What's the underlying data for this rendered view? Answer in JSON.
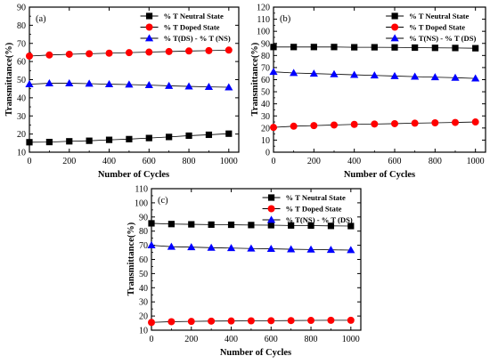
{
  "chart_data": [
    {
      "type": "scatter",
      "panel_label": "(a)",
      "xlabel": "Number of Cycles",
      "ylabel": "Transmittance(%)",
      "xlim": [
        0,
        1050
      ],
      "ylim": [
        10,
        90
      ],
      "xticks": [
        0,
        200,
        400,
        600,
        800,
        1000
      ],
      "yticks": [
        10,
        20,
        30,
        40,
        50,
        60,
        70,
        80,
        90
      ],
      "legend_position": "top-right",
      "series": [
        {
          "name": "% T Neutral State",
          "marker": "square",
          "color": "#000000",
          "x": [
            0,
            100,
            200,
            300,
            400,
            500,
            600,
            700,
            800,
            900,
            1000
          ],
          "y": [
            15.5,
            15.6,
            16,
            16.3,
            16.8,
            17.2,
            17.8,
            18.4,
            19.1,
            19.6,
            20.2
          ]
        },
        {
          "name": "% T Doped State",
          "marker": "circle",
          "color": "#ff0000",
          "x": [
            0,
            100,
            200,
            300,
            400,
            500,
            600,
            700,
            800,
            900,
            1000
          ],
          "y": [
            63,
            63.6,
            64,
            64.3,
            64.6,
            64.9,
            65.2,
            65.5,
            65.8,
            66,
            66.3
          ]
        },
        {
          "name": "% T(DS) - % T (NS)",
          "marker": "triangle",
          "color": "#0000ff",
          "x": [
            0,
            100,
            200,
            300,
            400,
            500,
            600,
            700,
            800,
            900,
            1000
          ],
          "y": [
            47.5,
            48,
            48,
            47.8,
            47.5,
            47.3,
            47,
            46.6,
            46.3,
            46,
            45.8
          ]
        }
      ]
    },
    {
      "type": "scatter",
      "panel_label": "(b)",
      "xlabel": "Number of Cycles",
      "ylabel": "Transmittance(%)",
      "xlim": [
        0,
        1050
      ],
      "ylim": [
        0,
        120
      ],
      "xticks": [
        0,
        200,
        400,
        600,
        800,
        1000
      ],
      "yticks": [
        0,
        10,
        20,
        30,
        40,
        50,
        60,
        70,
        80,
        90,
        100,
        110,
        120
      ],
      "legend_position": "top-right",
      "series": [
        {
          "name": "% T Neutral State",
          "marker": "square",
          "color": "#000000",
          "x": [
            0,
            100,
            200,
            300,
            400,
            500,
            600,
            700,
            800,
            900,
            1000
          ],
          "y": [
            87,
            87,
            87,
            87,
            86.8,
            86.8,
            86.7,
            86.5,
            86.3,
            86.2,
            86
          ]
        },
        {
          "name": "% T Doped State",
          "marker": "circle",
          "color": "#ff0000",
          "x": [
            0,
            100,
            200,
            300,
            400,
            500,
            600,
            700,
            800,
            900,
            1000
          ],
          "y": [
            20.5,
            21.5,
            22,
            22.5,
            23,
            23.3,
            23.6,
            24,
            24.3,
            24.6,
            25
          ]
        },
        {
          "name": "% T(NS) - % T (DS)",
          "marker": "triangle",
          "color": "#0000ff",
          "x": [
            0,
            100,
            200,
            300,
            400,
            500,
            600,
            700,
            800,
            900,
            1000
          ],
          "y": [
            66.5,
            65.5,
            65,
            64.5,
            64,
            63.5,
            63,
            62.5,
            62,
            61.6,
            61
          ]
        }
      ]
    },
    {
      "type": "scatter",
      "panel_label": "(c)",
      "xlabel": "Number of Cycles",
      "ylabel": "Transmittance(%)",
      "xlim": [
        0,
        1050
      ],
      "ylim": [
        10,
        110
      ],
      "xticks": [
        0,
        200,
        400,
        600,
        800,
        1000
      ],
      "yticks": [
        10,
        20,
        30,
        40,
        50,
        60,
        70,
        80,
        90,
        100,
        110
      ],
      "legend_position": "top-right",
      "series": [
        {
          "name": "% T Neutral State",
          "marker": "square",
          "color": "#000000",
          "x": [
            0,
            100,
            200,
            300,
            400,
            500,
            600,
            700,
            800,
            900,
            1000
          ],
          "y": [
            85.5,
            85,
            84.8,
            84.6,
            84.5,
            84.3,
            84.2,
            84,
            83.9,
            83.7,
            83.6
          ]
        },
        {
          "name": "% T Doped State",
          "marker": "circle",
          "color": "#ff0000",
          "x": [
            0,
            100,
            200,
            300,
            400,
            500,
            600,
            700,
            800,
            900,
            1000
          ],
          "y": [
            15.5,
            16,
            16.2,
            16.4,
            16.5,
            16.6,
            16.7,
            16.8,
            16.9,
            17,
            17
          ]
        },
        {
          "name": "% T(NS) - % T (DS)",
          "marker": "triangle",
          "color": "#0000ff",
          "x": [
            0,
            100,
            200,
            300,
            400,
            500,
            600,
            700,
            800,
            900,
            1000
          ],
          "y": [
            70,
            69,
            68.7,
            68.3,
            68,
            67.7,
            67.5,
            67.2,
            67,
            66.8,
            66.6
          ]
        }
      ]
    }
  ]
}
